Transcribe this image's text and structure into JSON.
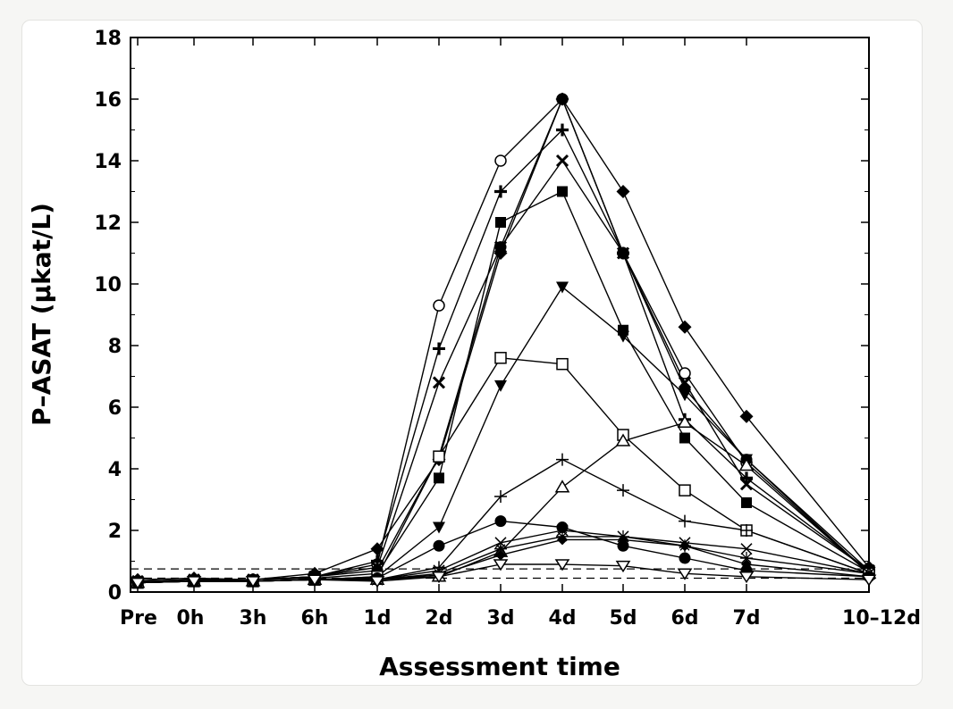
{
  "chart_data": {
    "type": "line",
    "xlabel": "Assessment time",
    "ylabel": "P–ASAT (μkat/L)",
    "ylim": [
      0,
      18
    ],
    "yticks": [
      0,
      2,
      4,
      6,
      8,
      10,
      12,
      14,
      16,
      18
    ],
    "categories": [
      "Pre",
      "0h",
      "3h",
      "6h",
      "1d",
      "2d",
      "3d",
      "4d",
      "5d",
      "6d",
      "7d",
      "10–12d"
    ],
    "reference_lines": [
      0.45,
      0.75
    ],
    "grid": false,
    "legend": "none",
    "series": [
      {
        "marker": "circle-open",
        "values": [
          0.35,
          0.4,
          0.4,
          0.5,
          0.9,
          9.3,
          14,
          16,
          11,
          7.1,
          4.2,
          0.6
        ]
      },
      {
        "marker": "plus-bold",
        "values": [
          0.35,
          0.4,
          0.4,
          0.5,
          1.0,
          7.9,
          13,
          15,
          11,
          5.6,
          3.7,
          0.7
        ]
      },
      {
        "marker": "x-bold",
        "values": [
          0.35,
          0.4,
          0.4,
          0.5,
          0.8,
          6.8,
          11.2,
          14,
          11,
          6.8,
          3.5,
          0.7
        ]
      },
      {
        "marker": "circle-filled",
        "values": [
          0.35,
          0.4,
          0.4,
          0.5,
          0.7,
          4.4,
          11.2,
          16,
          11,
          6.6,
          4.3,
          0.7
        ]
      },
      {
        "marker": "diamond-filled",
        "values": [
          0.4,
          0.45,
          0.4,
          0.6,
          1.4,
          4.3,
          11,
          16,
          13,
          8.6,
          5.7,
          0.8
        ]
      },
      {
        "marker": "square-filled",
        "values": [
          0.3,
          0.35,
          0.4,
          0.45,
          0.6,
          3.7,
          12,
          13,
          8.5,
          5,
          2.9,
          0.65
        ]
      },
      {
        "marker": "triangle-down-filled",
        "values": [
          0.3,
          0.35,
          0.35,
          0.4,
          0.5,
          2.1,
          6.7,
          9.9,
          8.3,
          6.4,
          4.3,
          0.6
        ]
      },
      {
        "marker": "square-open",
        "values": [
          0.3,
          0.35,
          0.35,
          0.4,
          0.5,
          4.4,
          7.6,
          7.4,
          5.1,
          3.3,
          2.0,
          0.6
        ]
      },
      {
        "marker": "plus-thin",
        "values": [
          0.3,
          0.35,
          0.35,
          0.4,
          0.4,
          0.8,
          3.1,
          4.3,
          3.3,
          2.3,
          2.0,
          0.6
        ]
      },
      {
        "marker": "triangle-up-open",
        "values": [
          0.3,
          0.35,
          0.35,
          0.4,
          0.4,
          0.5,
          1.3,
          3.4,
          4.9,
          5.5,
          4.1,
          0.6
        ]
      },
      {
        "marker": "circle-filled",
        "values": [
          0.3,
          0.35,
          0.35,
          0.4,
          0.45,
          1.5,
          2.3,
          2.1,
          1.5,
          1.1,
          0.7,
          0.5
        ]
      },
      {
        "marker": "x-thin",
        "values": [
          0.3,
          0.35,
          0.35,
          0.4,
          0.4,
          0.7,
          1.6,
          2.0,
          1.8,
          1.6,
          1.4,
          0.6
        ]
      },
      {
        "marker": "star-thin",
        "values": [
          0.3,
          0.35,
          0.35,
          0.4,
          0.4,
          0.6,
          1.4,
          1.8,
          1.8,
          1.5,
          1.1,
          0.6
        ]
      },
      {
        "marker": "diamond-filled-small",
        "values": [
          0.3,
          0.35,
          0.35,
          0.4,
          0.4,
          0.55,
          1.2,
          1.7,
          1.7,
          1.5,
          0.9,
          0.5
        ]
      },
      {
        "marker": "triangle-down-open",
        "values": [
          0.3,
          0.35,
          0.35,
          0.4,
          0.35,
          0.5,
          0.9,
          0.9,
          0.85,
          0.6,
          0.5,
          0.4
        ]
      }
    ]
  }
}
